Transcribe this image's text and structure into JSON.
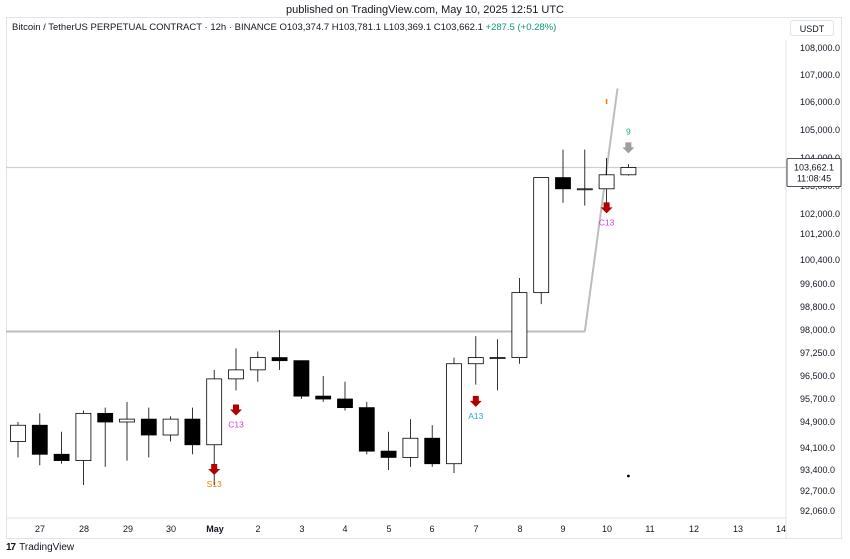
{
  "published": "published on TradingView.com, May 10, 2025 12:51 UTC",
  "header": {
    "symbol": "Bitcoin / TetherUS PERPETUAL CONTRACT · 12h · BINANCE",
    "open": "O103,374.7",
    "high": "H103,781.1",
    "low": "L103,369.1",
    "close": "C103,662.1",
    "change": "+287.5 (+0.28%)"
  },
  "currency": "USDT",
  "footer": {
    "logo": "17",
    "brand": "TradingView"
  },
  "colors": {
    "up": "#ffffff",
    "down": "#000000",
    "outline": "#000000",
    "line": "#bdbdbd",
    "arrow": "#b20000",
    "green": "#22ab94",
    "orange": "#f57c00",
    "magenta": "#c940d8",
    "cyan": "#29a6d8"
  },
  "chart_data": {
    "type": "candlestick",
    "timeframe": "12h",
    "y_axis": {
      "ticks": [
        108000,
        107000,
        106000,
        105000,
        104000,
        103000,
        102000,
        101200,
        100400,
        99600,
        98800,
        98000,
        97250,
        96500,
        95700,
        94900,
        94100,
        93400,
        92700,
        92060
      ],
      "tick_labels": [
        "108,000.0",
        "107,000.0",
        "106,000.0",
        "105,000.0",
        "104,000.0",
        "103,000.0",
        "102,000.0",
        "101,200.0",
        "100,400.0",
        "99,600.0",
        "98,800.0",
        "98,000.0",
        "97,250.0",
        "96,500.0",
        "95,700.0",
        "94,900.0",
        "94,100.0",
        "93,400.0",
        "92,700.0",
        "92,060.0"
      ]
    },
    "x_axis": {
      "labels": [
        "27",
        "28",
        "29",
        "30",
        "May",
        "2",
        "3",
        "4",
        "5",
        "6",
        "7",
        "8",
        "9",
        "10",
        "11",
        "12",
        "13",
        "14"
      ]
    },
    "candles": [
      {
        "o": 94300,
        "h": 94900,
        "l": 93800,
        "c": 94800
      },
      {
        "o": 94800,
        "h": 95200,
        "l": 93550,
        "c": 93900
      },
      {
        "o": 93900,
        "h": 94600,
        "l": 93600,
        "c": 93700
      },
      {
        "o": 93700,
        "h": 95300,
        "l": 92900,
        "c": 95200
      },
      {
        "o": 95200,
        "h": 95400,
        "l": 93500,
        "c": 94900
      },
      {
        "o": 94900,
        "h": 95600,
        "l": 93700,
        "c": 95000
      },
      {
        "o": 95000,
        "h": 95400,
        "l": 93800,
        "c": 94500
      },
      {
        "o": 94500,
        "h": 95100,
        "l": 94300,
        "c": 95000
      },
      {
        "o": 95000,
        "h": 95400,
        "l": 93900,
        "c": 94200
      },
      {
        "o": 94200,
        "h": 96700,
        "l": 92900,
        "c": 96400
      },
      {
        "o": 96400,
        "h": 97400,
        "l": 96000,
        "c": 96700
      },
      {
        "o": 96700,
        "h": 97300,
        "l": 96300,
        "c": 97100
      },
      {
        "o": 97100,
        "h": 98000,
        "l": 96700,
        "c": 97000
      },
      {
        "o": 97000,
        "h": 97000,
        "l": 95700,
        "c": 95800
      },
      {
        "o": 95800,
        "h": 96500,
        "l": 95600,
        "c": 95700
      },
      {
        "o": 95700,
        "h": 96300,
        "l": 95300,
        "c": 95400
      },
      {
        "o": 95400,
        "h": 95600,
        "l": 93900,
        "c": 94000
      },
      {
        "o": 94000,
        "h": 94600,
        "l": 93400,
        "c": 93800
      },
      {
        "o": 93800,
        "h": 95000,
        "l": 93500,
        "c": 94400
      },
      {
        "o": 94400,
        "h": 94800,
        "l": 93500,
        "c": 93600
      },
      {
        "o": 93600,
        "h": 97100,
        "l": 93300,
        "c": 96900
      },
      {
        "o": 96900,
        "h": 97800,
        "l": 96200,
        "c": 97100
      },
      {
        "o": 97100,
        "h": 97700,
        "l": 96000,
        "c": 97100
      },
      {
        "o": 97100,
        "h": 99800,
        "l": 96900,
        "c": 99300
      },
      {
        "o": 99300,
        "h": 103300,
        "l": 98900,
        "c": 103300
      },
      {
        "o": 103300,
        "h": 104300,
        "l": 102400,
        "c": 102900
      },
      {
        "o": 102900,
        "h": 104300,
        "l": 102300,
        "c": 102900
      },
      {
        "o": 102900,
        "h": 104000,
        "l": 102400,
        "c": 103400
      },
      {
        "o": 103400,
        "h": 103781,
        "l": 103369,
        "c": 103662
      }
    ],
    "indicator_line": [
      {
        "from": 0,
        "to": 26,
        "y": 97950
      },
      {
        "from": 26,
        "to": 27.5,
        "y_from": 97950,
        "y_to": 106500
      }
    ],
    "horizontal_line": 103662,
    "last_price": {
      "label": "103,662.1",
      "countdown": "11:08:45"
    },
    "markers": [
      {
        "type": "arrow",
        "index": 10,
        "value": 95300,
        "label": "C13",
        "color": "magenta"
      },
      {
        "type": "arrow",
        "index": 9,
        "value": 93400,
        "label": "S13",
        "color": "orange"
      },
      {
        "type": "arrow",
        "index": 21,
        "value": 95600,
        "label": "A13",
        "color": "cyan"
      },
      {
        "type": "arrow",
        "index": 27,
        "value": 102200,
        "label": "C13",
        "color": "magenta"
      },
      {
        "type": "grey-arrow",
        "index": 28,
        "value": 104200,
        "label": "9",
        "color": "green"
      },
      {
        "type": "tick",
        "index": 27,
        "value": 106000,
        "label": "",
        "color": "orange"
      },
      {
        "type": "dot",
        "index": 28,
        "value": 93200,
        "label": "",
        "color": "#000000"
      }
    ]
  }
}
